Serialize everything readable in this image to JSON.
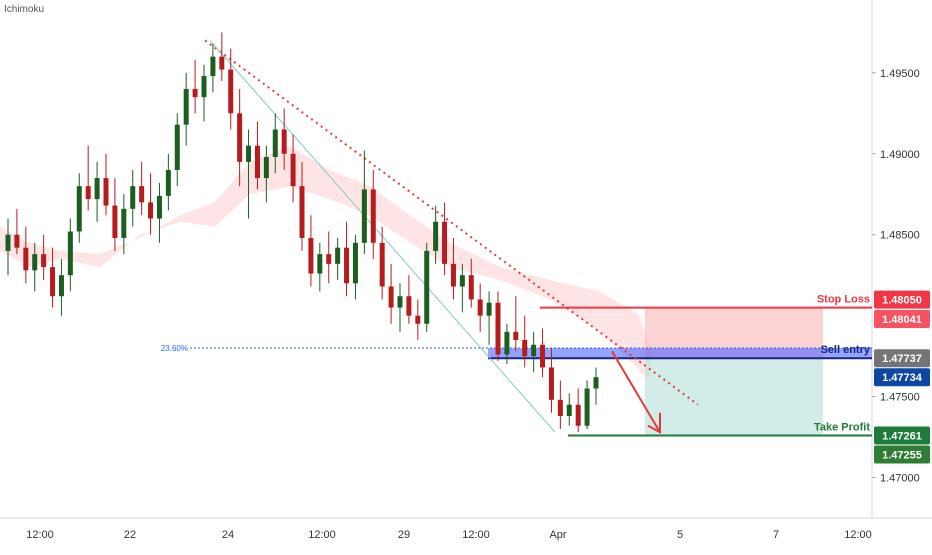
{
  "indicator": {
    "name": "Ichimoku"
  },
  "chart_data": {
    "type": "candlestick",
    "ylim": [
      1.4675,
      1.4995
    ],
    "x_ticks": [
      "12:00",
      "22",
      "24",
      "12:00",
      "29",
      "12:00",
      "Apr",
      "5",
      "7",
      "12:00"
    ],
    "y_ticks": [
      "1.49500",
      "1.49000",
      "1.48500",
      "1.47500",
      "1.47000"
    ],
    "y_tick_values": [
      1.495,
      1.49,
      1.485,
      1.475,
      1.47
    ],
    "fib_label": "23.60%",
    "fib_value": 1.478,
    "levels": {
      "stop_loss": {
        "label": "Stop Loss",
        "value": 1.4805,
        "price_tag": "1.48050",
        "color": "#f23645"
      },
      "stop_loss_2": {
        "price_tag": "1.48041",
        "color": "#f7525f"
      },
      "sell_entry": {
        "label": "Sell entry",
        "value": 1.47737,
        "price_tag": "1.47737",
        "color": "#2962ff"
      },
      "sell_entry_2": {
        "price_tag": "1.47734",
        "color": "#0d47a1"
      },
      "take_profit": {
        "label": "Take Profit",
        "value": 1.4726,
        "price_tag": "1.47261",
        "color": "#1e7b3a"
      },
      "take_profit_2": {
        "price_tag": "1.47255",
        "color": "#2e7d32"
      }
    },
    "candles": [
      [
        1.484,
        1.486,
        1.4825,
        1.485
      ],
      [
        1.485,
        1.4866,
        1.4838,
        1.4842
      ],
      [
        1.4842,
        1.4855,
        1.482,
        1.4828
      ],
      [
        1.4828,
        1.4845,
        1.4815,
        1.4838
      ],
      [
        1.4838,
        1.485,
        1.4822,
        1.483
      ],
      [
        1.483,
        1.4842,
        1.4805,
        1.4812
      ],
      [
        1.4812,
        1.4835,
        1.48,
        1.4825
      ],
      [
        1.4825,
        1.486,
        1.4815,
        1.4852
      ],
      [
        1.4852,
        1.4888,
        1.4845,
        1.488
      ],
      [
        1.488,
        1.4905,
        1.4865,
        1.4872
      ],
      [
        1.4872,
        1.4895,
        1.4858,
        1.4885
      ],
      [
        1.4885,
        1.49,
        1.4862,
        1.4868
      ],
      [
        1.4868,
        1.4885,
        1.484,
        1.4848
      ],
      [
        1.4848,
        1.4875,
        1.4838,
        1.4866
      ],
      [
        1.4866,
        1.489,
        1.4855,
        1.488
      ],
      [
        1.488,
        1.4895,
        1.4862,
        1.487
      ],
      [
        1.487,
        1.4888,
        1.485,
        1.486
      ],
      [
        1.486,
        1.4882,
        1.4845,
        1.4874
      ],
      [
        1.4874,
        1.49,
        1.4865,
        1.489
      ],
      [
        1.489,
        1.4925,
        1.488,
        1.4918
      ],
      [
        1.4918,
        1.495,
        1.4905,
        1.494
      ],
      [
        1.494,
        1.4958,
        1.4925,
        1.4935
      ],
      [
        1.4935,
        1.4955,
        1.492,
        1.4948
      ],
      [
        1.4948,
        1.4968,
        1.4938,
        1.496
      ],
      [
        1.496,
        1.4975,
        1.4945,
        1.4952
      ],
      [
        1.4952,
        1.4965,
        1.4915,
        1.4925
      ],
      [
        1.4925,
        1.494,
        1.488,
        1.4895
      ],
      [
        1.4895,
        1.4915,
        1.486,
        1.4905
      ],
      [
        1.4905,
        1.492,
        1.4878,
        1.4885
      ],
      [
        1.4885,
        1.4905,
        1.487,
        1.4898
      ],
      [
        1.4898,
        1.4925,
        1.4888,
        1.4915
      ],
      [
        1.4915,
        1.4928,
        1.489,
        1.49
      ],
      [
        1.49,
        1.4912,
        1.487,
        1.488
      ],
      [
        1.488,
        1.4895,
        1.484,
        1.4848
      ],
      [
        1.4848,
        1.4862,
        1.4818,
        1.4826
      ],
      [
        1.4826,
        1.4845,
        1.4815,
        1.4838
      ],
      [
        1.4838,
        1.4852,
        1.482,
        1.4832
      ],
      [
        1.4832,
        1.4848,
        1.4822,
        1.4842
      ],
      [
        1.4842,
        1.4858,
        1.4812,
        1.482
      ],
      [
        1.482,
        1.485,
        1.481,
        1.4845
      ],
      [
        1.4845,
        1.4902,
        1.4838,
        1.4878
      ],
      [
        1.4878,
        1.489,
        1.4835,
        1.4845
      ],
      [
        1.4845,
        1.4855,
        1.481,
        1.4818
      ],
      [
        1.4818,
        1.4832,
        1.4795,
        1.4805
      ],
      [
        1.4805,
        1.482,
        1.479,
        1.4812
      ],
      [
        1.4812,
        1.4825,
        1.4795,
        1.48
      ],
      [
        1.48,
        1.481,
        1.4785,
        1.4795
      ],
      [
        1.4795,
        1.4845,
        1.479,
        1.484
      ],
      [
        1.484,
        1.4868,
        1.4832,
        1.4858
      ],
      [
        1.4858,
        1.487,
        1.4825,
        1.4832
      ],
      [
        1.4832,
        1.4848,
        1.481,
        1.4818
      ],
      [
        1.4818,
        1.4832,
        1.4802,
        1.4825
      ],
      [
        1.4825,
        1.4835,
        1.4805,
        1.481
      ],
      [
        1.481,
        1.482,
        1.479,
        1.48
      ],
      [
        1.48,
        1.4815,
        1.4782,
        1.4808
      ],
      [
        1.4808,
        1.4815,
        1.4772,
        1.4776
      ],
      [
        1.4776,
        1.4795,
        1.477,
        1.479
      ],
      [
        1.479,
        1.4812,
        1.4778,
        1.4785
      ],
      [
        1.4785,
        1.48,
        1.4768,
        1.4775
      ],
      [
        1.4775,
        1.479,
        1.4765,
        1.4782
      ],
      [
        1.4782,
        1.4792,
        1.4762,
        1.4768
      ],
      [
        1.4768,
        1.478,
        1.474,
        1.4748
      ],
      [
        1.4748,
        1.476,
        1.473,
        1.4738
      ],
      [
        1.4738,
        1.4752,
        1.4732,
        1.4745
      ],
      [
        1.4745,
        1.4755,
        1.4728,
        1.4732
      ],
      [
        1.4732,
        1.476,
        1.473,
        1.4755
      ],
      [
        1.4755,
        1.4768,
        1.4745,
        1.4762
      ]
    ]
  }
}
